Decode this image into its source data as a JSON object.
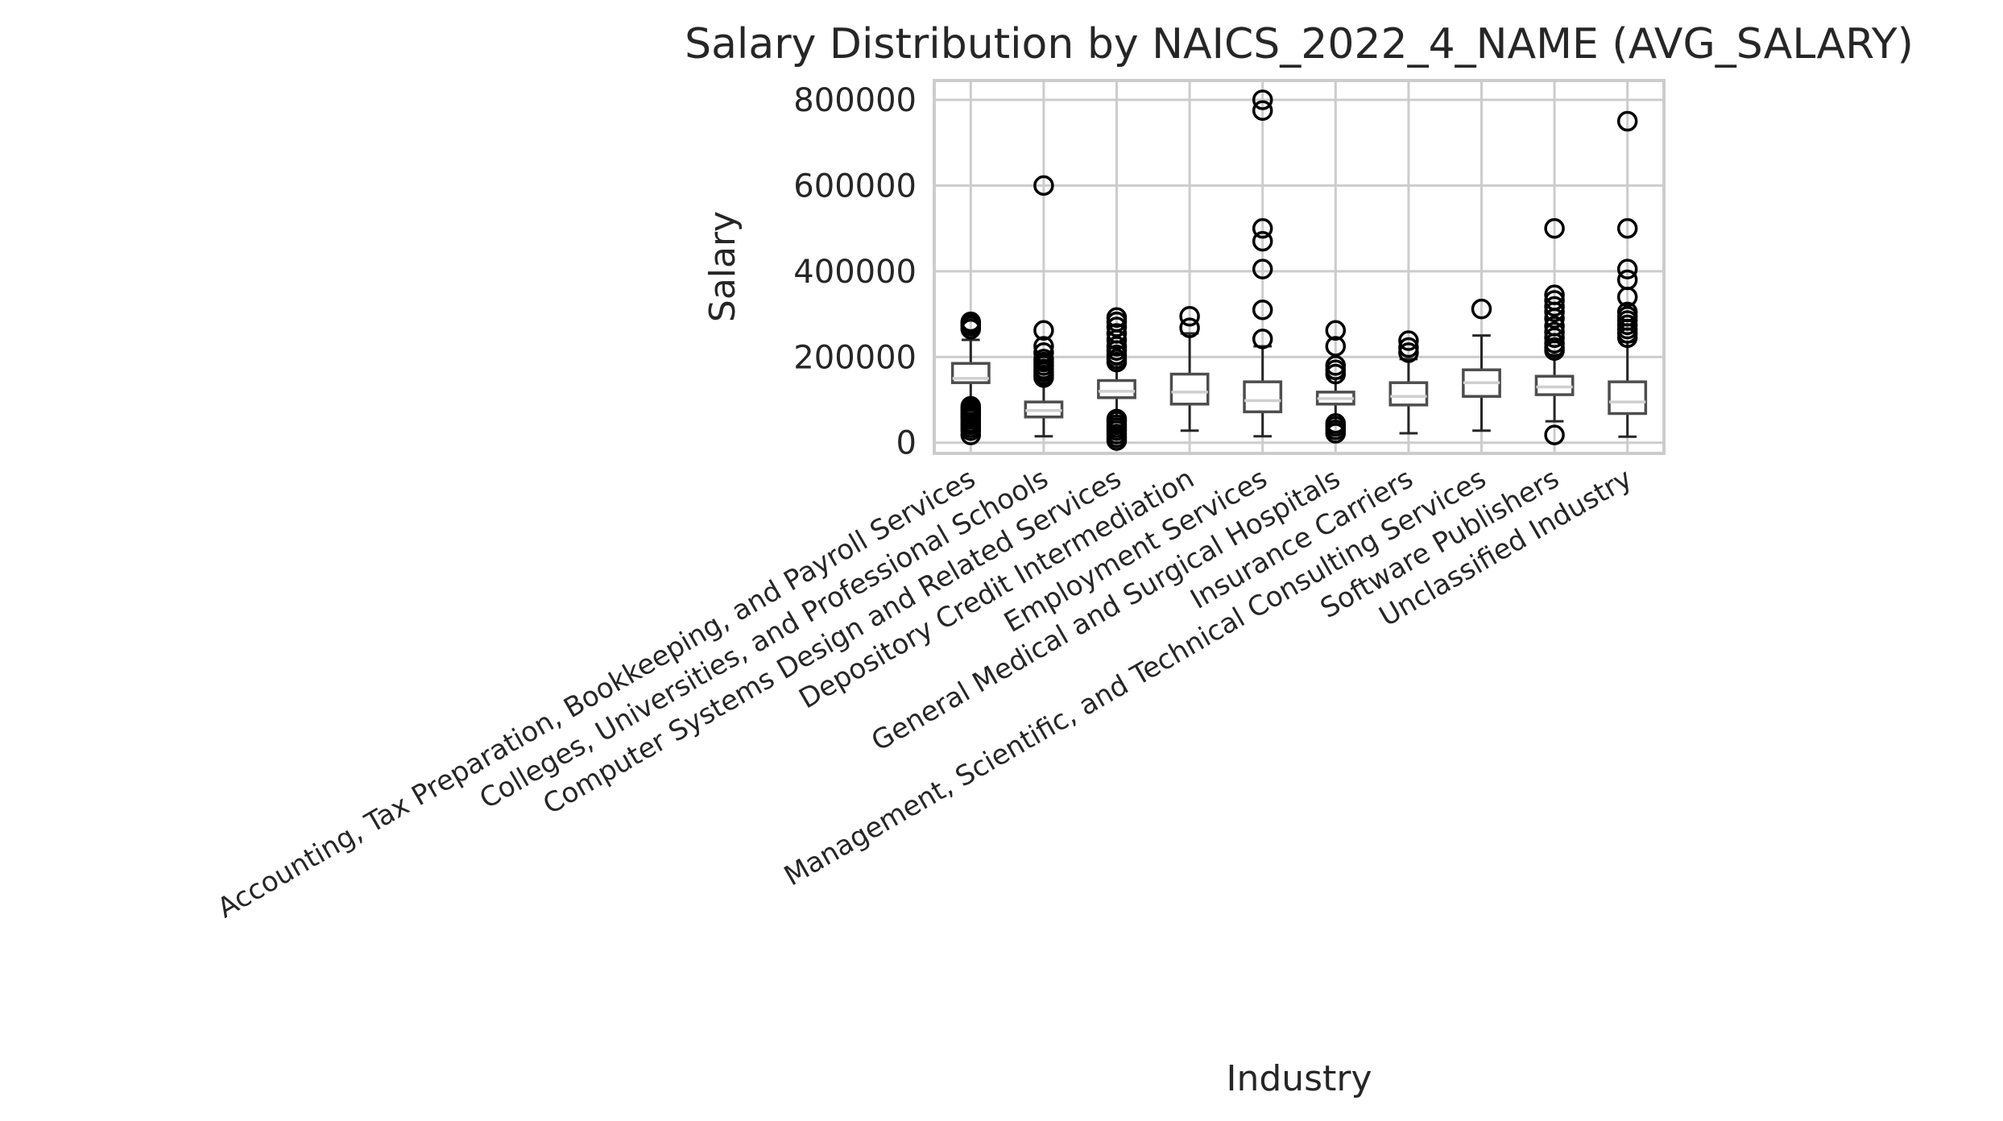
{
  "chart_data": {
    "type": "box",
    "title": "Salary Distribution by NAICS_2022_4_NAME (AVG_SALARY)",
    "xlabel": "Industry",
    "ylabel": "Salary",
    "ylim": [
      -25000,
      845000
    ],
    "yticks": [
      0,
      200000,
      400000,
      600000,
      800000
    ],
    "ytick_labels": [
      "0",
      "200000",
      "400000",
      "600000",
      "800000"
    ],
    "grid": true,
    "categories": [
      "Accounting, Tax Preparation, Bookkeeping, and Payroll Services",
      "Colleges, Universities, and Professional Schools",
      "Computer Systems Design and Related Services",
      "Depository Credit Intermediation",
      "Employment Services",
      "General Medical and Surgical Hospitals",
      "Insurance Carriers",
      "Management, Scientific, and Technical Consulting Services",
      "Software Publishers",
      "Unclassified Industry"
    ],
    "boxes": [
      {
        "whislo": 90000,
        "q1": 140000,
        "med": 150000,
        "q3": 185000,
        "whishi": 240000,
        "fliers": [
          18000,
          28000,
          35000,
          42000,
          48000,
          55000,
          60000,
          65000,
          70000,
          75000,
          80000,
          85000,
          265000,
          272000,
          278000,
          282000
        ]
      },
      {
        "whislo": 15000,
        "q1": 60000,
        "med": 75000,
        "q3": 95000,
        "whishi": 148000,
        "fliers": [
          152000,
          158000,
          165000,
          172000,
          180000,
          188000,
          195000,
          210000,
          225000,
          262000,
          600000
        ]
      },
      {
        "whislo": 62000,
        "q1": 105000,
        "med": 120000,
        "q3": 145000,
        "whishi": 182000,
        "fliers": [
          5000,
          12000,
          20000,
          28000,
          35000,
          42000,
          50000,
          55000,
          188000,
          195000,
          205000,
          215000,
          225000,
          240000,
          255000,
          270000,
          282000,
          292000
        ]
      },
      {
        "whislo": 28000,
        "q1": 90000,
        "med": 118000,
        "q3": 160000,
        "whishi": 255000,
        "fliers": [
          268000,
          295000
        ]
      },
      {
        "whislo": 15000,
        "q1": 72000,
        "med": 98000,
        "q3": 142000,
        "whishi": 225000,
        "fliers": [
          242000,
          310000,
          405000,
          470000,
          500000,
          775000,
          800000
        ]
      },
      {
        "whislo": 45000,
        "q1": 90000,
        "med": 103000,
        "q3": 118000,
        "whishi": 150000,
        "fliers": [
          22000,
          30000,
          38000,
          45000,
          160000,
          170000,
          180000,
          225000,
          262000
        ]
      },
      {
        "whislo": 22000,
        "q1": 88000,
        "med": 108000,
        "q3": 140000,
        "whishi": 195000,
        "fliers": [
          210000,
          222000,
          238000
        ]
      },
      {
        "whislo": 28000,
        "q1": 108000,
        "med": 140000,
        "q3": 170000,
        "whishi": 250000,
        "fliers": [
          312000
        ]
      },
      {
        "whislo": 50000,
        "q1": 112000,
        "med": 130000,
        "q3": 155000,
        "whishi": 205000,
        "fliers": [
          18000,
          215000,
          222000,
          232000,
          245000,
          258000,
          272000,
          290000,
          305000,
          318000,
          332000,
          345000,
          500000
        ]
      },
      {
        "whislo": 14000,
        "q1": 68000,
        "med": 95000,
        "q3": 142000,
        "whishi": 235000,
        "fliers": [
          245000,
          255000,
          265000,
          275000,
          285000,
          295000,
          305000,
          340000,
          380000,
          405000,
          500000,
          750000
        ]
      }
    ]
  }
}
